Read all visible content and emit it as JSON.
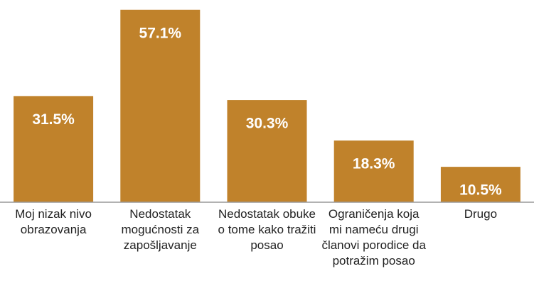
{
  "chart_data": {
    "type": "bar",
    "categories": [
      "Moj nizak nivo obrazovanja",
      "Nedostatak mogućnosti za zapošljavanje",
      "Nedostatak obuke o tome kako tražiti posao",
      "Ograničenja koja mi nameću drugi članovi porodice da potražim posao",
      "Drugo"
    ],
    "values": [
      31.5,
      57.1,
      30.3,
      18.3,
      10.5
    ],
    "value_labels": [
      "31.5%",
      "57.1%",
      "30.3%",
      "18.3%",
      "10.5%"
    ],
    "color": "#c0822b",
    "ylim": [
      0,
      60
    ]
  }
}
